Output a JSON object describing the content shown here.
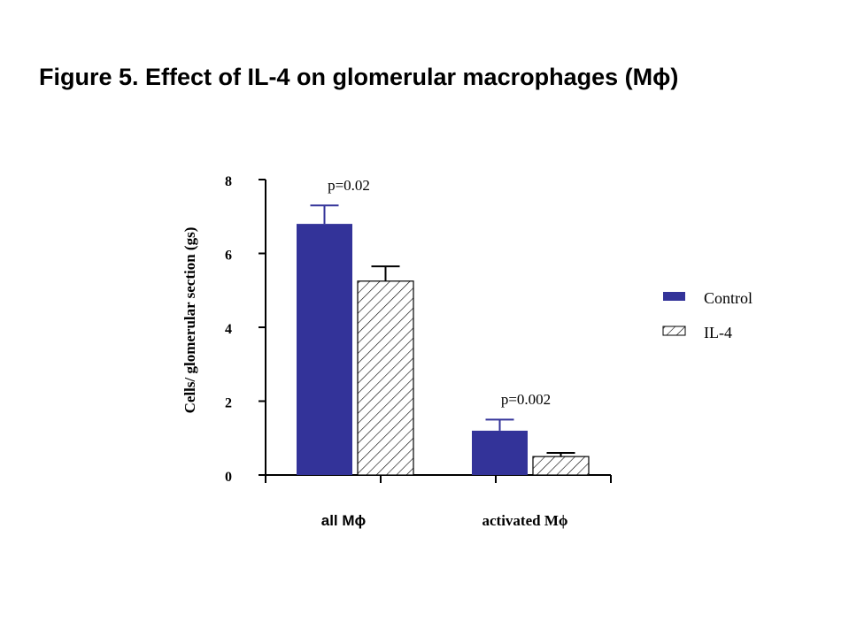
{
  "colors": {
    "control": "#333399",
    "il4_fill": "#ffffff",
    "hatch": "#000000",
    "axis": "#000000"
  },
  "chart_data": {
    "type": "bar",
    "title": "Figure 5. Effect of IL-4 on glomerular macrophages (Mϕ)",
    "ylabel": "Cells/ glomerular section (gs)",
    "xlabel": "",
    "ylim": [
      0,
      8
    ],
    "yticks": [
      "0",
      "2",
      "4",
      "6",
      "8"
    ],
    "categories": [
      "all Mϕ",
      "activated Mϕ"
    ],
    "series": [
      {
        "name": "Control",
        "values": [
          6.8,
          1.2
        ],
        "errors": [
          0.5,
          0.3
        ]
      },
      {
        "name": "IL-4",
        "values": [
          5.25,
          0.5
        ],
        "errors": [
          0.4,
          0.1
        ]
      }
    ],
    "annotations": [
      "p=0.02",
      "p=0.002"
    ],
    "legend": {
      "placement": "right",
      "patterns": [
        "solid",
        "hatched"
      ]
    },
    "grid": false
  }
}
